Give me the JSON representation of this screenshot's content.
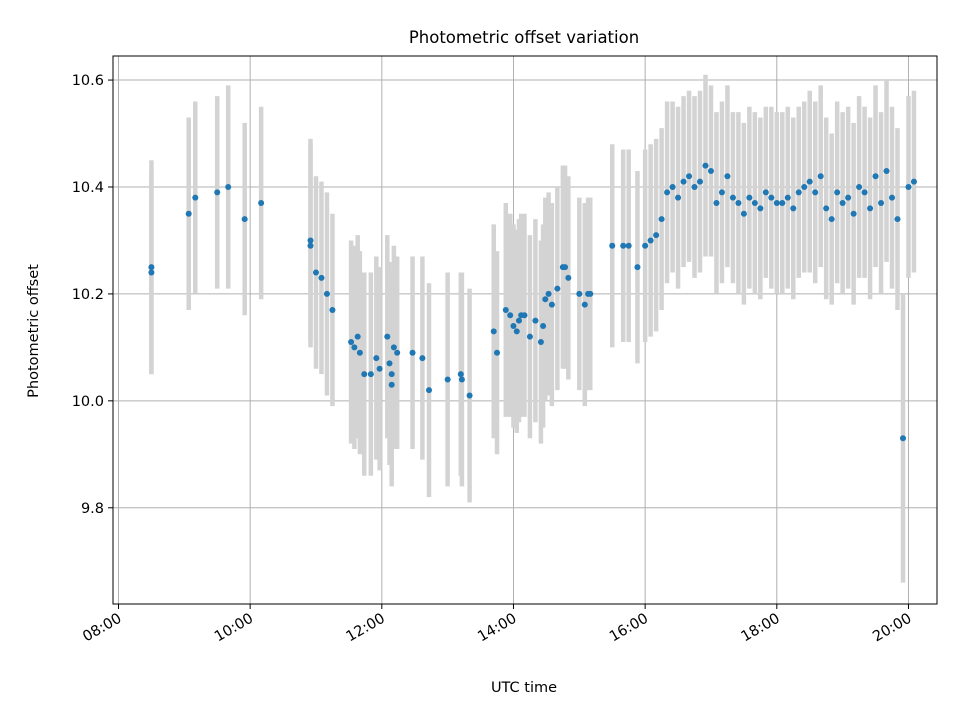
{
  "chart_data": {
    "type": "scatter",
    "title": "Photometric offset variation",
    "xlabel": "UTC time",
    "ylabel": "Photometric offset",
    "xlim": [
      "07:55",
      "20:26"
    ],
    "ylim": [
      9.62,
      10.645
    ],
    "xticks": [
      "08:00",
      "10:00",
      "12:00",
      "14:00",
      "16:00",
      "18:00",
      "20:00"
    ],
    "yticks": [
      "9.8",
      "10.0",
      "10.2",
      "10.4",
      "10.6"
    ],
    "grid": true,
    "legend": "none",
    "colors": {
      "marker": "#1f77b4",
      "errorbar": "#d3d3d3",
      "grid": "#b0b0b0"
    },
    "series": [
      {
        "name": "",
        "x": [
          "08:30",
          "08:30",
          "09:04",
          "09:10",
          "09:30",
          "09:40",
          "09:55",
          "10:10",
          "10:55",
          "10:55",
          "11:00",
          "11:05",
          "11:10",
          "11:15",
          "11:32",
          "11:35",
          "11:38",
          "11:40",
          "11:44",
          "11:50",
          "11:55",
          "11:58",
          "12:05",
          "12:07",
          "12:09",
          "12:09",
          "12:11",
          "12:14",
          "12:28",
          "12:37",
          "12:43",
          "13:00",
          "13:12",
          "13:13",
          "13:20",
          "13:42",
          "13:45",
          "13:53",
          "13:57",
          "14:00",
          "14:03",
          "14:05",
          "14:07",
          "14:10",
          "14:15",
          "14:20",
          "14:25",
          "14:27",
          "14:29",
          "14:32",
          "14:35",
          "14:40",
          "14:45",
          "14:47",
          "14:50",
          "15:00",
          "15:05",
          "15:08",
          "15:10",
          "15:30",
          "15:40",
          "15:45",
          "15:53",
          "16:00",
          "16:05",
          "16:10",
          "16:15",
          "16:20",
          "16:25",
          "16:30",
          "16:35",
          "16:40",
          "16:45",
          "16:50",
          "16:55",
          "17:00",
          "17:05",
          "17:10",
          "17:15",
          "17:20",
          "17:25",
          "17:30",
          "17:35",
          "17:40",
          "17:45",
          "17:50",
          "17:55",
          "18:00",
          "18:05",
          "18:10",
          "18:15",
          "18:20",
          "18:25",
          "18:30",
          "18:35",
          "18:40",
          "18:45",
          "18:50",
          "18:55",
          "19:00",
          "19:05",
          "19:10",
          "19:15",
          "19:20",
          "19:25",
          "19:30",
          "19:35",
          "19:40",
          "19:45",
          "19:50",
          "19:55",
          "20:00",
          "20:05"
        ],
        "y": [
          10.25,
          10.24,
          10.35,
          10.38,
          10.39,
          10.4,
          10.34,
          10.37,
          10.3,
          10.29,
          10.24,
          10.23,
          10.2,
          10.17,
          10.11,
          10.1,
          10.12,
          10.09,
          10.05,
          10.05,
          10.08,
          10.06,
          10.12,
          10.07,
          10.03,
          10.05,
          10.1,
          10.09,
          10.09,
          10.08,
          10.02,
          10.04,
          10.05,
          10.04,
          10.01,
          10.13,
          10.09,
          10.17,
          10.16,
          10.14,
          10.13,
          10.15,
          10.16,
          10.16,
          10.12,
          10.15,
          10.11,
          10.14,
          10.19,
          10.2,
          10.18,
          10.21,
          10.25,
          10.25,
          10.23,
          10.2,
          10.18,
          10.2,
          10.2,
          10.29,
          10.29,
          10.29,
          10.25,
          10.29,
          10.3,
          10.31,
          10.34,
          10.39,
          10.4,
          10.38,
          10.41,
          10.42,
          10.4,
          10.41,
          10.44,
          10.43,
          10.37,
          10.39,
          10.42,
          10.38,
          10.37,
          10.35,
          10.38,
          10.37,
          10.36,
          10.39,
          10.38,
          10.37,
          10.37,
          10.38,
          10.36,
          10.39,
          10.4,
          10.41,
          10.39,
          10.42,
          10.36,
          10.34,
          10.39,
          10.37,
          10.38,
          10.35,
          10.4,
          10.39,
          10.36,
          10.42,
          10.37,
          10.43,
          10.38,
          10.34,
          9.93,
          10.4,
          10.41
        ],
        "yerr": [
          0.2,
          0.19,
          0.18,
          0.18,
          0.18,
          0.19,
          0.18,
          0.18,
          0.19,
          0.19,
          0.18,
          0.18,
          0.19,
          0.18,
          0.19,
          0.19,
          0.19,
          0.19,
          0.19,
          0.19,
          0.19,
          0.19,
          0.19,
          0.19,
          0.19,
          0.19,
          0.19,
          0.18,
          0.18,
          0.19,
          0.2,
          0.2,
          0.19,
          0.2,
          0.2,
          0.2,
          0.19,
          0.2,
          0.19,
          0.19,
          0.19,
          0.19,
          0.19,
          0.19,
          0.19,
          0.19,
          0.19,
          0.19,
          0.19,
          0.19,
          0.19,
          0.19,
          0.19,
          0.19,
          0.19,
          0.18,
          0.19,
          0.18,
          0.18,
          0.19,
          0.18,
          0.18,
          0.18,
          0.18,
          0.18,
          0.18,
          0.17,
          0.17,
          0.16,
          0.17,
          0.16,
          0.16,
          0.17,
          0.17,
          0.17,
          0.16,
          0.17,
          0.17,
          0.17,
          0.16,
          0.17,
          0.17,
          0.17,
          0.17,
          0.17,
          0.16,
          0.17,
          0.17,
          0.17,
          0.17,
          0.17,
          0.16,
          0.16,
          0.17,
          0.17,
          0.17,
          0.17,
          0.16,
          0.17,
          0.17,
          0.17,
          0.17,
          0.17,
          0.16,
          0.17,
          0.17,
          0.17,
          0.17,
          0.17,
          0.17,
          0.27,
          0.17,
          0.17
        ]
      }
    ]
  }
}
